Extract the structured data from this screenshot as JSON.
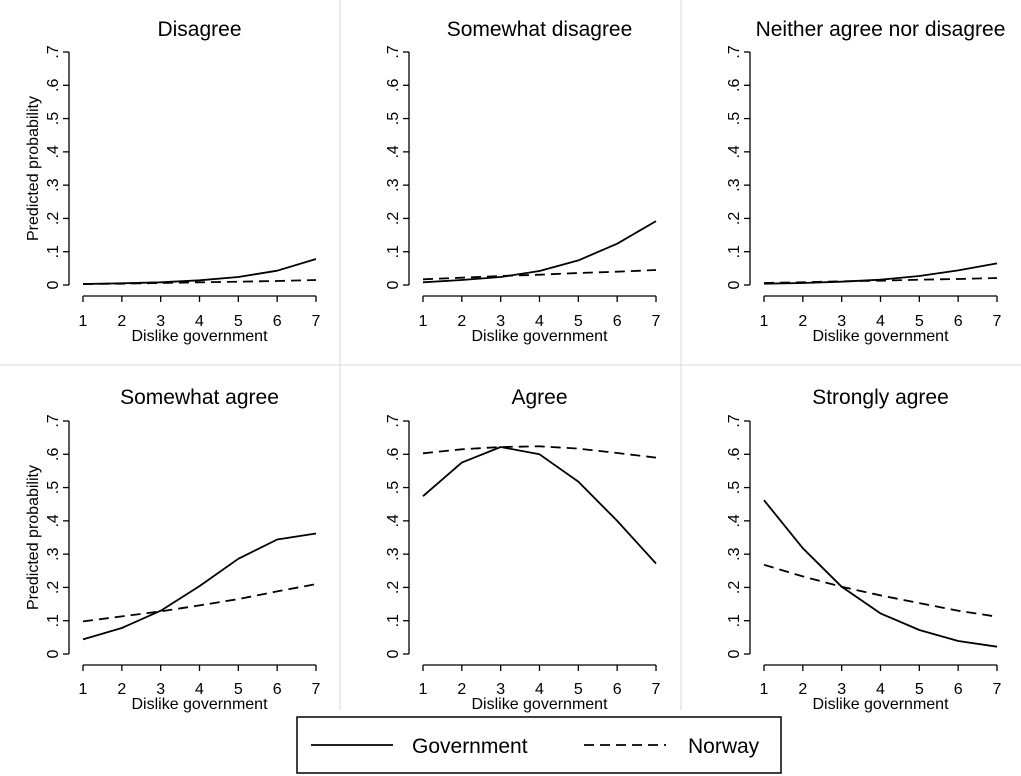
{
  "chart_data": {
    "type": "line",
    "panels": [
      {
        "title": "Disagree",
        "x": [
          1,
          2,
          3,
          4,
          5,
          6,
          7
        ],
        "series": [
          {
            "name": "Government",
            "values": [
              0.003,
              0.005,
              0.008,
              0.014,
              0.024,
              0.043,
              0.078
            ]
          },
          {
            "name": "Norway",
            "values": [
              0.003,
              0.004,
              0.006,
              0.008,
              0.01,
              0.012,
              0.015
            ]
          }
        ]
      },
      {
        "title": "Somewhat disagree",
        "x": [
          1,
          2,
          3,
          4,
          5,
          6,
          7
        ],
        "series": [
          {
            "name": "Government",
            "values": [
              0.008,
              0.015,
              0.024,
              0.042,
              0.074,
              0.124,
              0.192
            ]
          },
          {
            "name": "Norway",
            "values": [
              0.017,
              0.022,
              0.027,
              0.031,
              0.036,
              0.04,
              0.045
            ]
          }
        ]
      },
      {
        "title": "Neither agree nor disagree",
        "x": [
          1,
          2,
          3,
          4,
          5,
          6,
          7
        ],
        "series": [
          {
            "name": "Government",
            "values": [
              0.004,
              0.006,
              0.01,
              0.016,
              0.027,
              0.044,
              0.065
            ]
          },
          {
            "name": "Norway",
            "values": [
              0.006,
              0.008,
              0.011,
              0.013,
              0.016,
              0.018,
              0.021
            ]
          }
        ]
      },
      {
        "title": "Somewhat agree",
        "x": [
          1,
          2,
          3,
          4,
          5,
          6,
          7
        ],
        "series": [
          {
            "name": "Government",
            "values": [
              0.044,
              0.078,
              0.13,
              0.204,
              0.286,
              0.344,
              0.362
            ]
          },
          {
            "name": "Norway",
            "values": [
              0.098,
              0.113,
              0.128,
              0.146,
              0.165,
              0.188,
              0.21
            ]
          }
        ]
      },
      {
        "title": "Agree",
        "x": [
          1,
          2,
          3,
          4,
          5,
          6,
          7
        ],
        "series": [
          {
            "name": "Government",
            "values": [
              0.474,
              0.575,
              0.622,
              0.6,
              0.518,
              0.4,
              0.272
            ]
          },
          {
            "name": "Norway",
            "values": [
              0.603,
              0.615,
              0.622,
              0.624,
              0.617,
              0.604,
              0.59
            ]
          }
        ]
      },
      {
        "title": "Strongly agree",
        "x": [
          1,
          2,
          3,
          4,
          5,
          6,
          7
        ],
        "series": [
          {
            "name": "Government",
            "values": [
              0.462,
              0.318,
              0.202,
              0.122,
              0.072,
              0.039,
              0.022
            ]
          },
          {
            "name": "Norway",
            "values": [
              0.268,
              0.233,
              0.202,
              0.176,
              0.153,
              0.13,
              0.112
            ]
          }
        ]
      }
    ],
    "xlabel": "Dislike government",
    "ylabel": "Predicted probability",
    "xticks": [
      "1",
      "2",
      "3",
      "4",
      "5",
      "6",
      "7"
    ],
    "yticks": [
      "0",
      ".1",
      ".2",
      ".3",
      ".4",
      ".5",
      ".6",
      ".7"
    ],
    "ytick_values": [
      0,
      0.1,
      0.2,
      0.3,
      0.4,
      0.5,
      0.6,
      0.7
    ],
    "xlim": [
      1,
      7
    ],
    "ylim": [
      0,
      0.7
    ],
    "grid": false,
    "legend": {
      "position": "bottom-center",
      "entries": [
        {
          "name": "Government",
          "style": "solid"
        },
        {
          "name": "Norway",
          "style": "dashed"
        }
      ]
    }
  }
}
